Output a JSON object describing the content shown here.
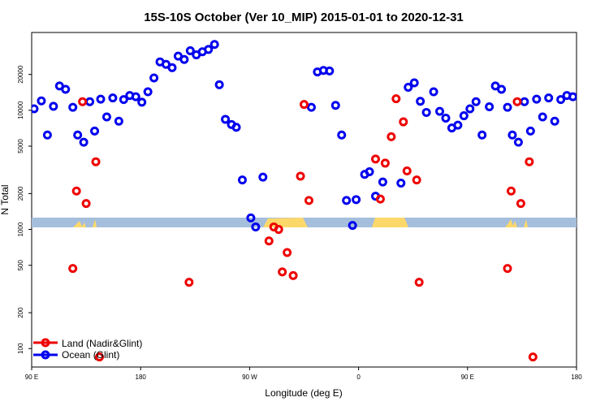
{
  "chart_data": {
    "type": "scatter",
    "title": "15S-10S October (Ver 10_MIP)   2015-01-01 to 2020-12-31",
    "xlabel": "Longitude (deg E)",
    "ylabel": "N Total",
    "y_scale": "log",
    "ylim": [
      70,
      45000
    ],
    "xlim": [
      90,
      540
    ],
    "x_ticks": [
      {
        "value": 90,
        "label": "90 E"
      },
      {
        "value": 180,
        "label": "180"
      },
      {
        "value": 270,
        "label": "90 W"
      },
      {
        "value": 360,
        "label": "0"
      },
      {
        "value": 450,
        "label": "90 E"
      },
      {
        "value": 540,
        "label": "180"
      }
    ],
    "y_ticks": [
      {
        "value": 100,
        "label": "100"
      },
      {
        "value": 200,
        "label": "200"
      },
      {
        "value": 500,
        "label": "500"
      },
      {
        "value": 1000,
        "label": "1000"
      },
      {
        "value": 2000,
        "label": "2000"
      },
      {
        "value": 5000,
        "label": "5000"
      },
      {
        "value": 10000,
        "label": "10000"
      },
      {
        "value": 20000,
        "label": "20000"
      }
    ],
    "legend": {
      "position": "bottom-left",
      "entries": [
        {
          "label": "Land (Nadir&Glint)",
          "color": "#ee0000"
        },
        {
          "label": "Ocean (Glint)",
          "color": "#0000ee"
        }
      ]
    },
    "series": [
      {
        "name": "Land (Nadir&Glint)",
        "color": "#ee0000",
        "points": [
          {
            "x": 124,
            "y": 470
          },
          {
            "x": 127,
            "y": 2100
          },
          {
            "x": 132,
            "y": 11800
          },
          {
            "x": 135,
            "y": 1650
          },
          {
            "x": 143,
            "y": 3700
          },
          {
            "x": 146,
            "y": 85
          },
          {
            "x": 220,
            "y": 360
          },
          {
            "x": 286,
            "y": 800
          },
          {
            "x": 290,
            "y": 1050
          },
          {
            "x": 294,
            "y": 1000
          },
          {
            "x": 297,
            "y": 440
          },
          {
            "x": 301,
            "y": 640
          },
          {
            "x": 306,
            "y": 410
          },
          {
            "x": 312,
            "y": 2800
          },
          {
            "x": 315,
            "y": 11200
          },
          {
            "x": 319,
            "y": 1750
          },
          {
            "x": 374,
            "y": 3900
          },
          {
            "x": 378,
            "y": 1800
          },
          {
            "x": 382,
            "y": 3600
          },
          {
            "x": 387,
            "y": 6000
          },
          {
            "x": 391,
            "y": 12500
          },
          {
            "x": 397,
            "y": 8000
          },
          {
            "x": 400,
            "y": 3100
          },
          {
            "x": 408,
            "y": 2600
          },
          {
            "x": 410,
            "y": 360
          },
          {
            "x": 483,
            "y": 470
          },
          {
            "x": 486,
            "y": 2100
          },
          {
            "x": 491,
            "y": 11800
          },
          {
            "x": 494,
            "y": 1650
          },
          {
            "x": 501,
            "y": 3700
          },
          {
            "x": 504,
            "y": 85
          }
        ]
      },
      {
        "name": "Ocean (Glint)",
        "color": "#0000ee",
        "points": [
          {
            "x": 92,
            "y": 10300
          },
          {
            "x": 98,
            "y": 12000
          },
          {
            "x": 103,
            "y": 6200
          },
          {
            "x": 108,
            "y": 10800
          },
          {
            "x": 113,
            "y": 16000
          },
          {
            "x": 118,
            "y": 15000
          },
          {
            "x": 124,
            "y": 10600
          },
          {
            "x": 128,
            "y": 6200
          },
          {
            "x": 133,
            "y": 5400
          },
          {
            "x": 138,
            "y": 11800
          },
          {
            "x": 142,
            "y": 6700
          },
          {
            "x": 147,
            "y": 12400
          },
          {
            "x": 152,
            "y": 8800
          },
          {
            "x": 157,
            "y": 12700
          },
          {
            "x": 162,
            "y": 8100
          },
          {
            "x": 166,
            "y": 12300
          },
          {
            "x": 171,
            "y": 13300
          },
          {
            "x": 176,
            "y": 13000
          },
          {
            "x": 181,
            "y": 11700
          },
          {
            "x": 186,
            "y": 14300
          },
          {
            "x": 191,
            "y": 18700
          },
          {
            "x": 196,
            "y": 25500
          },
          {
            "x": 201,
            "y": 24300
          },
          {
            "x": 206,
            "y": 22800
          },
          {
            "x": 211,
            "y": 28500
          },
          {
            "x": 216,
            "y": 26700
          },
          {
            "x": 221,
            "y": 31600
          },
          {
            "x": 226,
            "y": 29200
          },
          {
            "x": 231,
            "y": 31000
          },
          {
            "x": 236,
            "y": 32400
          },
          {
            "x": 241,
            "y": 35700
          },
          {
            "x": 245,
            "y": 16400
          },
          {
            "x": 250,
            "y": 8400
          },
          {
            "x": 255,
            "y": 7600
          },
          {
            "x": 259,
            "y": 7200
          },
          {
            "x": 264,
            "y": 2600
          },
          {
            "x": 271,
            "y": 1250
          },
          {
            "x": 275,
            "y": 1050
          },
          {
            "x": 281,
            "y": 2750
          },
          {
            "x": 321,
            "y": 10600
          },
          {
            "x": 326,
            "y": 21000
          },
          {
            "x": 331,
            "y": 21600
          },
          {
            "x": 336,
            "y": 21400
          },
          {
            "x": 341,
            "y": 11000
          },
          {
            "x": 346,
            "y": 6200
          },
          {
            "x": 350,
            "y": 1750
          },
          {
            "x": 355,
            "y": 1080
          },
          {
            "x": 358,
            "y": 1780
          },
          {
            "x": 365,
            "y": 2900
          },
          {
            "x": 369,
            "y": 3050
          },
          {
            "x": 374,
            "y": 1900
          },
          {
            "x": 380,
            "y": 2500
          },
          {
            "x": 395,
            "y": 2450
          },
          {
            "x": 401,
            "y": 15600
          },
          {
            "x": 406,
            "y": 17000
          },
          {
            "x": 411,
            "y": 11900
          },
          {
            "x": 416,
            "y": 9600
          },
          {
            "x": 422,
            "y": 14300
          },
          {
            "x": 427,
            "y": 9800
          },
          {
            "x": 432,
            "y": 8600
          },
          {
            "x": 437,
            "y": 7100
          },
          {
            "x": 442,
            "y": 7500
          },
          {
            "x": 447,
            "y": 9000
          },
          {
            "x": 452,
            "y": 10300
          },
          {
            "x": 457,
            "y": 11800
          },
          {
            "x": 462,
            "y": 6200
          },
          {
            "x": 468,
            "y": 10700
          },
          {
            "x": 473,
            "y": 16000
          },
          {
            "x": 478,
            "y": 15000
          },
          {
            "x": 483,
            "y": 10600
          },
          {
            "x": 487,
            "y": 6200
          },
          {
            "x": 492,
            "y": 5400
          },
          {
            "x": 497,
            "y": 11800
          },
          {
            "x": 502,
            "y": 6700
          },
          {
            "x": 507,
            "y": 12400
          },
          {
            "x": 512,
            "y": 8800
          },
          {
            "x": 517,
            "y": 12700
          },
          {
            "x": 522,
            "y": 8100
          },
          {
            "x": 527,
            "y": 12300
          },
          {
            "x": 532,
            "y": 13300
          },
          {
            "x": 537,
            "y": 13000
          }
        ]
      }
    ]
  }
}
